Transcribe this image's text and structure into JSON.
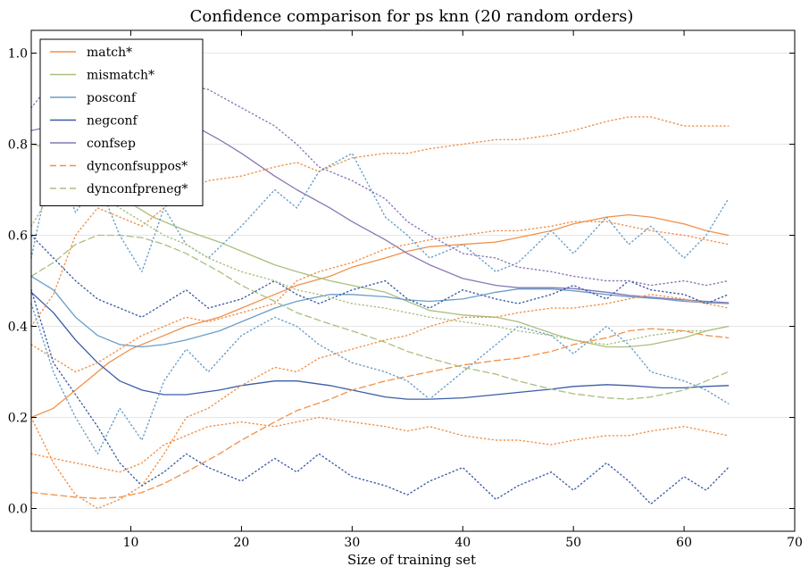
{
  "chart_data": {
    "type": "line",
    "title": "Confidence comparison for ps knn (20 random orders)",
    "xlabel": "Size of training set",
    "ylabel": "",
    "xlim": [
      1,
      70
    ],
    "ylim": [
      -0.05,
      1.05
    ],
    "xticks": [
      10,
      20,
      30,
      40,
      50,
      60,
      70
    ],
    "yticks": [
      0.0,
      0.2,
      0.4,
      0.6,
      0.8,
      1.0
    ],
    "grid": "horizontal",
    "legend_position": "top-left",
    "series": [
      {
        "name": "match*",
        "color": "#f0914a",
        "style": "solid",
        "x": [
          1,
          3,
          5,
          8,
          10,
          12,
          15,
          18,
          20,
          23,
          25,
          28,
          30,
          33,
          35,
          37,
          40,
          43,
          45,
          48,
          50,
          53,
          55,
          57,
          60,
          62,
          64
        ],
        "y": [
          0.2,
          0.22,
          0.26,
          0.32,
          0.35,
          0.37,
          0.4,
          0.42,
          0.44,
          0.47,
          0.49,
          0.51,
          0.53,
          0.55,
          0.565,
          0.575,
          0.58,
          0.585,
          0.595,
          0.61,
          0.625,
          0.64,
          0.645,
          0.64,
          0.625,
          0.61,
          0.6
        ]
      },
      {
        "name": "mismatch*",
        "color": "#a8c07f",
        "style": "solid",
        "x": [
          1,
          3,
          5,
          8,
          10,
          12,
          15,
          18,
          20,
          23,
          25,
          28,
          30,
          33,
          35,
          37,
          40,
          43,
          45,
          48,
          50,
          53,
          55,
          57,
          60,
          62,
          64
        ],
        "y": [
          0.8,
          0.79,
          0.77,
          0.71,
          0.67,
          0.64,
          0.61,
          0.585,
          0.565,
          0.535,
          0.52,
          0.5,
          0.49,
          0.475,
          0.455,
          0.435,
          0.425,
          0.42,
          0.41,
          0.385,
          0.37,
          0.355,
          0.355,
          0.36,
          0.375,
          0.39,
          0.4
        ]
      },
      {
        "name": "posconf",
        "color": "#6a9ec9",
        "style": "solid",
        "x": [
          1,
          3,
          5,
          7,
          9,
          11,
          13,
          15,
          18,
          20,
          23,
          25,
          28,
          30,
          33,
          35,
          37,
          40,
          43,
          45,
          48,
          50,
          53,
          55,
          58,
          60,
          62,
          64
        ],
        "y": [
          0.51,
          0.48,
          0.42,
          0.38,
          0.36,
          0.355,
          0.36,
          0.37,
          0.39,
          0.41,
          0.44,
          0.455,
          0.47,
          0.47,
          0.465,
          0.458,
          0.455,
          0.46,
          0.475,
          0.482,
          0.482,
          0.478,
          0.47,
          0.465,
          0.46,
          0.455,
          0.452,
          0.45
        ]
      },
      {
        "name": "negconf",
        "color": "#3c5ca8",
        "style": "solid",
        "x": [
          1,
          3,
          5,
          7,
          9,
          11,
          13,
          15,
          18,
          20,
          23,
          25,
          28,
          30,
          33,
          35,
          37,
          40,
          43,
          45,
          48,
          50,
          53,
          55,
          58,
          60,
          62,
          64
        ],
        "y": [
          0.475,
          0.43,
          0.37,
          0.32,
          0.28,
          0.26,
          0.25,
          0.25,
          0.26,
          0.27,
          0.28,
          0.28,
          0.27,
          0.26,
          0.245,
          0.24,
          0.24,
          0.243,
          0.25,
          0.255,
          0.262,
          0.268,
          0.272,
          0.27,
          0.265,
          0.265,
          0.268,
          0.27
        ]
      },
      {
        "name": "confsep",
        "color": "#8877b5",
        "style": "solid",
        "x": [
          1,
          3,
          5,
          7,
          9,
          11,
          13,
          15,
          18,
          20,
          23,
          25,
          28,
          30,
          33,
          35,
          37,
          40,
          43,
          45,
          48,
          50,
          53,
          55,
          58,
          60,
          62,
          64
        ],
        "y": [
          0.83,
          0.84,
          0.86,
          0.875,
          0.88,
          0.875,
          0.865,
          0.85,
          0.81,
          0.78,
          0.73,
          0.7,
          0.66,
          0.63,
          0.59,
          0.56,
          0.535,
          0.505,
          0.49,
          0.485,
          0.485,
          0.483,
          0.475,
          0.468,
          0.462,
          0.458,
          0.455,
          0.452
        ]
      },
      {
        "name": "dynconfsuppos*",
        "color": "#f0914a",
        "style": "dashed",
        "x": [
          1,
          3,
          5,
          7,
          9,
          11,
          13,
          15,
          18,
          20,
          23,
          25,
          28,
          30,
          33,
          35,
          37,
          40,
          43,
          45,
          48,
          50,
          53,
          55,
          57,
          60,
          62,
          64
        ],
        "y": [
          0.035,
          0.03,
          0.025,
          0.022,
          0.025,
          0.035,
          0.055,
          0.08,
          0.12,
          0.15,
          0.19,
          0.215,
          0.24,
          0.26,
          0.28,
          0.29,
          0.3,
          0.315,
          0.325,
          0.33,
          0.345,
          0.36,
          0.375,
          0.39,
          0.395,
          0.39,
          0.38,
          0.375
        ]
      },
      {
        "name": "dynconfpreneg*",
        "color": "#a8c07f",
        "style": "dashed",
        "x": [
          1,
          3,
          5,
          7,
          9,
          11,
          13,
          15,
          18,
          20,
          23,
          25,
          28,
          30,
          33,
          35,
          37,
          40,
          43,
          45,
          48,
          50,
          53,
          55,
          57,
          60,
          62,
          64
        ],
        "y": [
          0.51,
          0.54,
          0.58,
          0.6,
          0.6,
          0.595,
          0.58,
          0.56,
          0.52,
          0.49,
          0.455,
          0.43,
          0.405,
          0.39,
          0.365,
          0.345,
          0.33,
          0.31,
          0.295,
          0.28,
          0.262,
          0.252,
          0.243,
          0.24,
          0.245,
          0.26,
          0.28,
          0.3
        ]
      },
      {
        "name": "",
        "color": "#f0914a",
        "style": "dotted",
        "x": [
          1,
          3,
          5,
          7,
          9,
          11,
          13,
          15,
          17,
          20,
          23,
          25,
          27,
          30,
          33,
          35,
          37,
          40,
          43,
          45,
          48,
          50,
          53,
          55,
          57,
          60,
          62,
          64
        ],
        "y": [
          0.4,
          0.47,
          0.6,
          0.66,
          0.64,
          0.62,
          0.66,
          0.7,
          0.72,
          0.73,
          0.75,
          0.76,
          0.74,
          0.77,
          0.78,
          0.78,
          0.79,
          0.8,
          0.81,
          0.81,
          0.82,
          0.83,
          0.85,
          0.86,
          0.86,
          0.84,
          0.84,
          0.84
        ]
      },
      {
        "name": "",
        "color": "#f0914a",
        "style": "dotted",
        "x": [
          1,
          3,
          5,
          7,
          9,
          11,
          13,
          15,
          17,
          20,
          23,
          25,
          27,
          30,
          33,
          35,
          37,
          40,
          43,
          45,
          48,
          50,
          53,
          55,
          57,
          60,
          62,
          64
        ],
        "y": [
          0.2,
          0.1,
          0.03,
          0.0,
          0.02,
          0.05,
          0.12,
          0.2,
          0.22,
          0.27,
          0.31,
          0.3,
          0.33,
          0.35,
          0.37,
          0.38,
          0.4,
          0.42,
          0.42,
          0.43,
          0.44,
          0.44,
          0.45,
          0.46,
          0.47,
          0.46,
          0.45,
          0.44
        ]
      },
      {
        "name": "",
        "color": "#f0914a",
        "style": "dotted",
        "x": [
          1,
          3,
          5,
          7,
          9,
          11,
          13,
          15,
          17,
          20,
          23,
          25,
          27,
          30,
          33,
          35,
          37,
          40,
          43,
          45,
          48,
          50,
          53,
          55,
          57,
          60,
          62,
          64
        ],
        "y": [
          0.36,
          0.33,
          0.3,
          0.32,
          0.35,
          0.38,
          0.4,
          0.42,
          0.41,
          0.43,
          0.45,
          0.5,
          0.52,
          0.54,
          0.57,
          0.58,
          0.59,
          0.6,
          0.61,
          0.61,
          0.62,
          0.63,
          0.63,
          0.62,
          0.61,
          0.6,
          0.59,
          0.58
        ]
      },
      {
        "name": "",
        "color": "#f0914a",
        "style": "dotted",
        "x": [
          1,
          3,
          5,
          7,
          9,
          11,
          13,
          15,
          17,
          20,
          23,
          25,
          27,
          30,
          33,
          35,
          37,
          40,
          43,
          45,
          48,
          50,
          53,
          55,
          57,
          60,
          62,
          64
        ],
        "y": [
          0.12,
          0.11,
          0.1,
          0.09,
          0.08,
          0.1,
          0.14,
          0.16,
          0.18,
          0.19,
          0.18,
          0.19,
          0.2,
          0.19,
          0.18,
          0.17,
          0.18,
          0.16,
          0.15,
          0.15,
          0.14,
          0.15,
          0.16,
          0.16,
          0.17,
          0.18,
          0.17,
          0.16
        ]
      },
      {
        "name": "",
        "color": "#6a9ec9",
        "style": "dotted",
        "x": [
          1,
          3,
          5,
          7,
          9,
          11,
          13,
          15,
          17,
          20,
          23,
          25,
          27,
          30,
          33,
          35,
          37,
          40,
          43,
          45,
          48,
          50,
          53,
          55,
          57,
          60,
          62,
          64
        ],
        "y": [
          0.55,
          0.78,
          0.65,
          0.72,
          0.6,
          0.52,
          0.66,
          0.58,
          0.55,
          0.62,
          0.7,
          0.66,
          0.74,
          0.78,
          0.64,
          0.6,
          0.55,
          0.58,
          0.52,
          0.54,
          0.61,
          0.56,
          0.64,
          0.58,
          0.62,
          0.55,
          0.6,
          0.68
        ]
      },
      {
        "name": "",
        "color": "#6a9ec9",
        "style": "dotted",
        "x": [
          1,
          3,
          5,
          7,
          9,
          11,
          13,
          15,
          17,
          20,
          23,
          25,
          27,
          30,
          33,
          35,
          37,
          40,
          43,
          45,
          48,
          50,
          53,
          55,
          57,
          60,
          62,
          64
        ],
        "y": [
          0.45,
          0.3,
          0.2,
          0.12,
          0.22,
          0.15,
          0.28,
          0.35,
          0.3,
          0.38,
          0.42,
          0.4,
          0.36,
          0.32,
          0.3,
          0.28,
          0.24,
          0.3,
          0.36,
          0.4,
          0.38,
          0.34,
          0.4,
          0.36,
          0.3,
          0.28,
          0.26,
          0.23
        ]
      },
      {
        "name": "",
        "color": "#3c5ca8",
        "style": "dotted",
        "x": [
          1,
          3,
          5,
          7,
          9,
          11,
          13,
          15,
          17,
          20,
          23,
          25,
          27,
          30,
          33,
          35,
          37,
          40,
          43,
          45,
          48,
          50,
          53,
          55,
          57,
          60,
          62,
          64
        ],
        "y": [
          0.48,
          0.32,
          0.25,
          0.18,
          0.1,
          0.05,
          0.08,
          0.12,
          0.09,
          0.06,
          0.11,
          0.08,
          0.12,
          0.07,
          0.05,
          0.03,
          0.06,
          0.09,
          0.02,
          0.05,
          0.08,
          0.04,
          0.1,
          0.06,
          0.01,
          0.07,
          0.04,
          0.09
        ]
      },
      {
        "name": "",
        "color": "#3c5ca8",
        "style": "dotted",
        "x": [
          1,
          3,
          5,
          7,
          9,
          11,
          13,
          15,
          17,
          20,
          23,
          25,
          27,
          30,
          33,
          35,
          37,
          40,
          43,
          45,
          48,
          50,
          53,
          55,
          57,
          60,
          62,
          64
        ],
        "y": [
          0.6,
          0.55,
          0.5,
          0.46,
          0.44,
          0.42,
          0.45,
          0.48,
          0.44,
          0.46,
          0.5,
          0.47,
          0.45,
          0.48,
          0.5,
          0.46,
          0.44,
          0.48,
          0.46,
          0.45,
          0.47,
          0.49,
          0.46,
          0.5,
          0.48,
          0.47,
          0.45,
          0.47
        ]
      },
      {
        "name": "",
        "color": "#8877b5",
        "style": "dotted",
        "x": [
          1,
          3,
          5,
          7,
          9,
          11,
          13,
          15,
          17,
          20,
          23,
          25,
          27,
          30,
          33,
          35,
          37,
          40,
          43,
          45,
          48,
          50,
          53,
          55,
          57,
          60,
          62,
          64
        ],
        "y": [
          0.88,
          0.94,
          0.92,
          0.9,
          0.91,
          0.93,
          0.92,
          0.93,
          0.92,
          0.88,
          0.84,
          0.8,
          0.75,
          0.72,
          0.68,
          0.63,
          0.6,
          0.56,
          0.55,
          0.53,
          0.52,
          0.51,
          0.5,
          0.5,
          0.49,
          0.5,
          0.49,
          0.5
        ]
      },
      {
        "name": "",
        "color": "#a8c07f",
        "style": "dotted",
        "x": [
          1,
          3,
          5,
          7,
          9,
          11,
          13,
          15,
          17,
          20,
          23,
          25,
          27,
          30,
          33,
          35,
          37,
          40,
          43,
          45,
          48,
          50,
          53,
          55,
          57,
          60,
          62,
          64
        ],
        "y": [
          0.62,
          0.7,
          0.74,
          0.69,
          0.66,
          0.63,
          0.6,
          0.58,
          0.55,
          0.52,
          0.5,
          0.48,
          0.47,
          0.45,
          0.44,
          0.43,
          0.42,
          0.41,
          0.4,
          0.39,
          0.38,
          0.37,
          0.36,
          0.37,
          0.38,
          0.39,
          0.39,
          0.4
        ]
      }
    ]
  }
}
